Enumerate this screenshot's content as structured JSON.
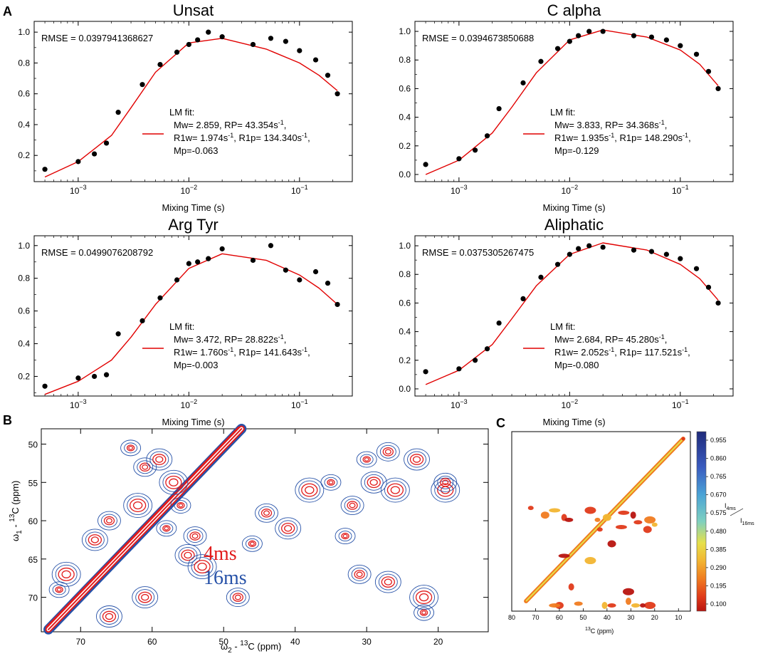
{
  "panels": {
    "a": "A",
    "b": "B",
    "c": "C"
  },
  "chart_data": [
    {
      "type": "scatter",
      "title": "Unsat",
      "xlabel": "Mixing Time (s)",
      "xscale": "log",
      "xlim": [
        0.0004,
        0.3
      ],
      "ylim": [
        0.03,
        1.07
      ],
      "yticks": [
        "0.2",
        "0.4",
        "0.6",
        "0.8",
        "1.0"
      ],
      "rmse_text": "RMSE = 0.0397941368627",
      "points": {
        "x": [
          0.0005,
          0.001,
          0.0014,
          0.0018,
          0.0023,
          0.0038,
          0.0055,
          0.0078,
          0.01,
          0.012,
          0.015,
          0.02,
          0.038,
          0.055,
          0.075,
          0.1,
          0.14,
          0.18,
          0.22
        ],
        "y": [
          0.11,
          0.16,
          0.21,
          0.28,
          0.48,
          0.66,
          0.79,
          0.87,
          0.92,
          0.95,
          1.0,
          0.97,
          0.92,
          0.96,
          0.94,
          0.88,
          0.82,
          0.72,
          0.6
        ]
      },
      "fit_curve": {
        "x": [
          0.0005,
          0.001,
          0.002,
          0.003,
          0.005,
          0.01,
          0.02,
          0.05,
          0.1,
          0.15,
          0.22
        ],
        "y": [
          0.06,
          0.16,
          0.33,
          0.51,
          0.74,
          0.93,
          0.96,
          0.89,
          0.8,
          0.72,
          0.62
        ]
      },
      "legend": {
        "lines": [
          "LM fit:",
          "Mw= 2.859, RP= 43.354s",
          "R1w= 1.974s",
          "R1p= 134.340s",
          "Mp=-0.063"
        ],
        "unit_sup": "-1"
      }
    },
    {
      "type": "scatter",
      "title": "C alpha",
      "xlabel": "Mixing Time (s)",
      "xscale": "log",
      "xlim": [
        0.0004,
        0.3
      ],
      "ylim": [
        -0.05,
        1.07
      ],
      "yticks": [
        "0.0",
        "0.2",
        "0.4",
        "0.6",
        "0.8",
        "1.0"
      ],
      "rmse_text": "RMSE = 0.0394673850688",
      "points": {
        "x": [
          0.0005,
          0.001,
          0.0014,
          0.0018,
          0.0023,
          0.0038,
          0.0055,
          0.0078,
          0.01,
          0.012,
          0.015,
          0.02,
          0.038,
          0.055,
          0.075,
          0.1,
          0.14,
          0.18,
          0.22
        ],
        "y": [
          0.07,
          0.11,
          0.17,
          0.27,
          0.46,
          0.64,
          0.79,
          0.88,
          0.93,
          0.97,
          1.0,
          1.0,
          0.97,
          0.96,
          0.94,
          0.9,
          0.84,
          0.72,
          0.6
        ]
      },
      "fit_curve": {
        "x": [
          0.0005,
          0.001,
          0.002,
          0.003,
          0.005,
          0.01,
          0.02,
          0.05,
          0.1,
          0.15,
          0.22
        ],
        "y": [
          0.0,
          0.1,
          0.29,
          0.47,
          0.71,
          0.94,
          1.01,
          0.96,
          0.87,
          0.77,
          0.62
        ]
      },
      "legend": {
        "lines": [
          "LM fit:",
          "Mw= 3.833, RP= 34.368s",
          "R1w= 1.935s",
          "R1p= 148.290s",
          "Mp=-0.129"
        ],
        "unit_sup": "-1"
      }
    },
    {
      "type": "scatter",
      "title": "Arg Tyr",
      "xlabel": "Mixing Time (s)",
      "xscale": "log",
      "xlim": [
        0.0004,
        0.3
      ],
      "ylim": [
        0.08,
        1.06
      ],
      "yticks": [
        "0.2",
        "0.4",
        "0.6",
        "0.8",
        "1.0"
      ],
      "rmse_text": "RMSE = 0.0499076208792",
      "points": {
        "x": [
          0.0005,
          0.001,
          0.0014,
          0.0018,
          0.0023,
          0.0038,
          0.0055,
          0.0078,
          0.01,
          0.012,
          0.015,
          0.02,
          0.038,
          0.055,
          0.075,
          0.1,
          0.14,
          0.18,
          0.22
        ],
        "y": [
          0.14,
          0.19,
          0.2,
          0.21,
          0.46,
          0.54,
          0.68,
          0.79,
          0.89,
          0.9,
          0.92,
          0.98,
          0.91,
          1.0,
          0.85,
          0.79,
          0.84,
          0.77,
          0.64
        ]
      },
      "fit_curve": {
        "x": [
          0.0005,
          0.001,
          0.002,
          0.003,
          0.005,
          0.01,
          0.02,
          0.05,
          0.1,
          0.15,
          0.22
        ],
        "y": [
          0.09,
          0.17,
          0.3,
          0.44,
          0.64,
          0.86,
          0.95,
          0.91,
          0.82,
          0.74,
          0.64
        ]
      },
      "legend": {
        "lines": [
          "LM fit:",
          "Mw= 3.472, RP= 28.822s",
          "R1w= 1.760s",
          "R1p= 141.643s",
          "Mp=-0.003"
        ],
        "unit_sup": "-1"
      }
    },
    {
      "type": "scatter",
      "title": "Aliphatic",
      "xlabel": "Mixing Time (s)",
      "xscale": "log",
      "xlim": [
        0.0004,
        0.3
      ],
      "ylim": [
        -0.05,
        1.07
      ],
      "yticks": [
        "0.0",
        "0.2",
        "0.4",
        "0.6",
        "0.8",
        "1.0"
      ],
      "rmse_text": "RMSE = 0.0375305267475",
      "points": {
        "x": [
          0.0005,
          0.001,
          0.0014,
          0.0018,
          0.0023,
          0.0038,
          0.0055,
          0.0078,
          0.01,
          0.012,
          0.015,
          0.02,
          0.038,
          0.055,
          0.075,
          0.1,
          0.14,
          0.18,
          0.22
        ],
        "y": [
          0.12,
          0.14,
          0.2,
          0.28,
          0.46,
          0.63,
          0.78,
          0.87,
          0.94,
          0.98,
          1.0,
          0.99,
          0.97,
          0.96,
          0.94,
          0.91,
          0.84,
          0.71,
          0.6
        ]
      },
      "fit_curve": {
        "x": [
          0.0005,
          0.001,
          0.002,
          0.003,
          0.005,
          0.01,
          0.02,
          0.05,
          0.1,
          0.15,
          0.22
        ],
        "y": [
          0.03,
          0.13,
          0.31,
          0.49,
          0.72,
          0.94,
          1.02,
          0.97,
          0.87,
          0.77,
          0.62
        ]
      },
      "legend": {
        "lines": [
          "LM fit:",
          "Mw= 2.684, RP= 45.280s",
          "R1w= 2.052s",
          "R1p= 117.521s",
          "Mp=-0.080"
        ],
        "unit_sup": "-1"
      }
    },
    {
      "type": "contour",
      "xlabel": {
        "w": "ω",
        "sub": "2",
        "rest": " - ",
        "sup": "13",
        "unit": "C  (ppm)"
      },
      "ylabel": {
        "w": "ω",
        "sub": "1",
        "rest": " - ",
        "sup": "13",
        "unit": "C  (ppm)"
      },
      "xticks": [
        "70",
        "60",
        "50",
        "40",
        "30",
        "20"
      ],
      "yticks": [
        "50",
        "55",
        "60",
        "65",
        "70"
      ],
      "xlim": [
        75.5,
        13
      ],
      "ylim": [
        48,
        74.5
      ],
      "legend": [
        {
          "label": "4ms",
          "color": "#e11b1b"
        },
        {
          "label": "16ms",
          "color": "#2752a8"
        }
      ],
      "peaks": [
        [
          63,
          50.5
        ],
        [
          61,
          53
        ],
        [
          59,
          52
        ],
        [
          57,
          55
        ],
        [
          56,
          58
        ],
        [
          66,
          60
        ],
        [
          68,
          62.5
        ],
        [
          62,
          58
        ],
        [
          58,
          61
        ],
        [
          54,
          62
        ],
        [
          55,
          64.5
        ],
        [
          53,
          66
        ],
        [
          46,
          63
        ],
        [
          44,
          59
        ],
        [
          41,
          61
        ],
        [
          38,
          56
        ],
        [
          35,
          55
        ],
        [
          32,
          58
        ],
        [
          29,
          55
        ],
        [
          26,
          56
        ],
        [
          30,
          52
        ],
        [
          27,
          51
        ],
        [
          23,
          52
        ],
        [
          19,
          56
        ],
        [
          33,
          62
        ],
        [
          31,
          67
        ],
        [
          27,
          68
        ],
        [
          22,
          70
        ],
        [
          22,
          72
        ],
        [
          19,
          55
        ],
        [
          66,
          72.5
        ],
        [
          72,
          67
        ],
        [
          73,
          69
        ],
        [
          48,
          70
        ],
        [
          61,
          70
        ]
      ]
    },
    {
      "type": "heatmap",
      "xlabel": {
        "sup": "13",
        "unit": "C (ppm)"
      },
      "xticks": [
        "80",
        "70",
        "60",
        "50",
        "40",
        "30",
        "20",
        "10"
      ],
      "xlim": [
        80,
        5
      ],
      "colorbar_ticks": [
        "0.955",
        "0.860",
        "0.765",
        "0.670",
        "0.575",
        "0.480",
        "0.385",
        "0.290",
        "0.195",
        "0.100"
      ],
      "colorbar_label": {
        "top": "I",
        "top_sub": "4ms",
        "bottom": "I",
        "bottom_sub": "16ms"
      },
      "colors": [
        "#1f2a7a",
        "#3a5cc0",
        "#4aa3d6",
        "#7ed0c0",
        "#e6e04a",
        "#f2b531",
        "#f07b20",
        "#e03a1a",
        "#b8140f"
      ],
      "blobs": [
        [
          72,
          22
        ],
        [
          66,
          25
        ],
        [
          62,
          23
        ],
        [
          58,
          26
        ],
        [
          56,
          27
        ],
        [
          47,
          23
        ],
        [
          44,
          27
        ],
        [
          40,
          26
        ],
        [
          33,
          24
        ],
        [
          29,
          25
        ],
        [
          27,
          28
        ],
        [
          22,
          27
        ],
        [
          20,
          29
        ],
        [
          23,
          31
        ],
        [
          58,
          42
        ],
        [
          55,
          55
        ],
        [
          52,
          62
        ],
        [
          47,
          44
        ],
        [
          43,
          31
        ],
        [
          38,
          37
        ],
        [
          34,
          30
        ],
        [
          31,
          61
        ],
        [
          28,
          68
        ],
        [
          22,
          72
        ],
        [
          25,
          70
        ],
        [
          60,
          64
        ],
        [
          62,
          67
        ],
        [
          41,
          63
        ],
        [
          38,
          65
        ],
        [
          31,
          57
        ]
      ]
    }
  ]
}
